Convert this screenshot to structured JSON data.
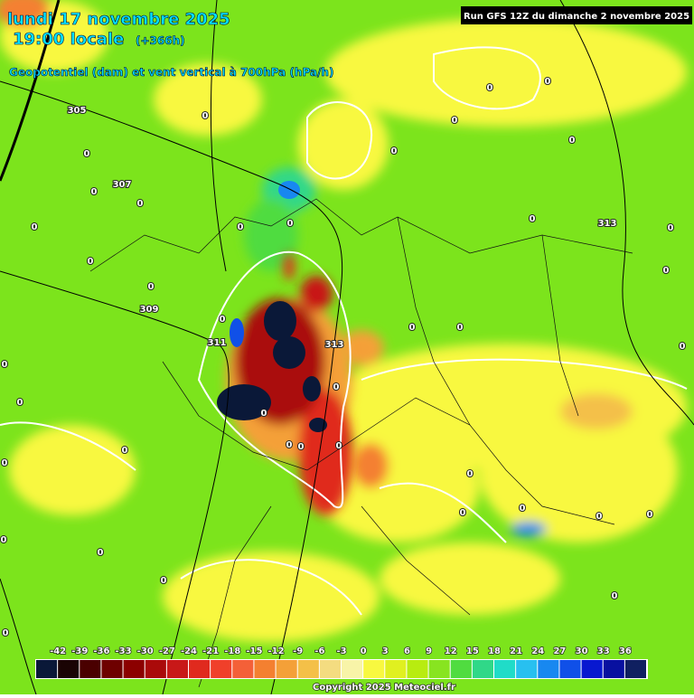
{
  "header": {
    "date": "lundi 17 novembre 2025",
    "time": "19:00 locale",
    "lead": "(+366h)",
    "subtitle": "Geopotentiel (dam) et vent vertical à 700hPa (hPa/h)",
    "run": "Run GFS 12Z du dimanche 2 novembre 2025"
  },
  "contour_labels": [
    305,
    307,
    309,
    311,
    313,
    313,
    0,
    0,
    0,
    0,
    0,
    0,
    0,
    0,
    0,
    0,
    0,
    0,
    0,
    0,
    0,
    0,
    0,
    0,
    0,
    0,
    0,
    0,
    0,
    0,
    0,
    0,
    0,
    0,
    0,
    0,
    0,
    0,
    0,
    0,
    0,
    0,
    0,
    0,
    0,
    0
  ],
  "colorbar": {
    "ticks": [
      -42,
      -39,
      -36,
      -33,
      -30,
      -27,
      -24,
      -21,
      -18,
      -15,
      -12,
      -9,
      -6,
      -3,
      0,
      3,
      6,
      9,
      12,
      15,
      18,
      21,
      24,
      27,
      30,
      33,
      36
    ],
    "colors": [
      "#0a1838",
      "#1a0404",
      "#4a0000",
      "#6e0000",
      "#8c0000",
      "#aa0a0a",
      "#c81818",
      "#e02a1e",
      "#f0402a",
      "#f46038",
      "#f48030",
      "#f4a038",
      "#f4c048",
      "#f4dc80",
      "#f8f4a8",
      "#f8f840",
      "#e0f020",
      "#b8ec10",
      "#88e420",
      "#50dc40",
      "#30d888",
      "#20dcc8",
      "#28c0f0",
      "#1888f0",
      "#1050e8",
      "#0818d0",
      "#0810a0",
      "#102060"
    ]
  },
  "footer": {
    "copyright": "Copyright 2025 Meteociel.fr"
  }
}
